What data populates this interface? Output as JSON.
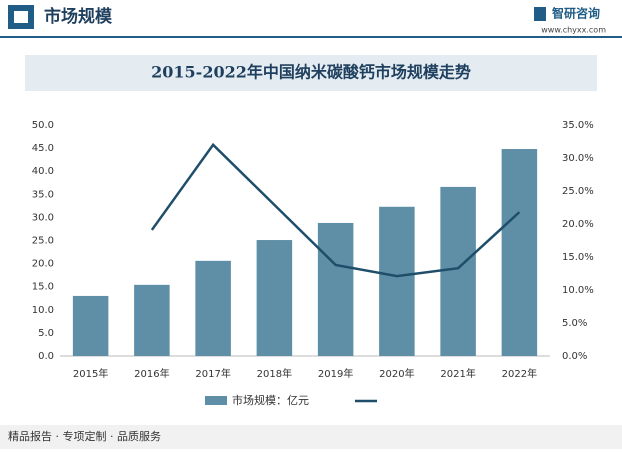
{
  "header": {
    "title": "市场规模",
    "brand": "智研咨询",
    "url": "www.chyxx.com"
  },
  "footer": {
    "text": "精品报告 · 专项定制 · 品质服务"
  },
  "chart_data": {
    "type": "bar-line",
    "title": "2015-2022年中国纳米碳酸钙市场规模走势",
    "categories": [
      "2015年",
      "2016年",
      "2017年",
      "2018年",
      "2019年",
      "2020年",
      "2021年",
      "2022年"
    ],
    "series": [
      {
        "name": "市场规模：亿元",
        "type": "bar",
        "color": "#5e8fa6",
        "values": [
          13.0,
          15.4,
          20.6,
          25.1,
          28.8,
          32.3,
          36.6,
          44.8
        ]
      },
      {
        "type": "line",
        "axis": "y2",
        "color": "#1f4e6b",
        "values": [
          null,
          19.1,
          32.0,
          22.9,
          13.8,
          12.1,
          13.3,
          21.8
        ]
      }
    ],
    "ylim": [
      0,
      50
    ],
    "yticks": [
      {
        "value": 0,
        "label": "0.0"
      },
      {
        "value": 5,
        "label": "5.0"
      },
      {
        "value": 10,
        "label": "10.0"
      },
      {
        "value": 15,
        "label": "15.0"
      },
      {
        "value": 20,
        "label": "20.0"
      },
      {
        "value": 25,
        "label": "25.0"
      },
      {
        "value": 30,
        "label": "30.0"
      },
      {
        "value": 35,
        "label": "35.0"
      },
      {
        "value": 40,
        "label": "40.0"
      },
      {
        "value": 45,
        "label": "45.0"
      },
      {
        "value": 50,
        "label": "50.0"
      }
    ],
    "y2lim": [
      0,
      35
    ],
    "y2ticks": [
      {
        "value": 0,
        "label": "0.0%"
      },
      {
        "value": 5,
        "label": "5.0%"
      },
      {
        "value": 10,
        "label": "10.0%"
      },
      {
        "value": 15,
        "label": "15.0%"
      },
      {
        "value": 20,
        "label": "20.0%"
      },
      {
        "value": 25,
        "label": "25.0%"
      },
      {
        "value": 30,
        "label": "30.0%"
      },
      {
        "value": 35,
        "label": "35.0%"
      }
    ]
  }
}
